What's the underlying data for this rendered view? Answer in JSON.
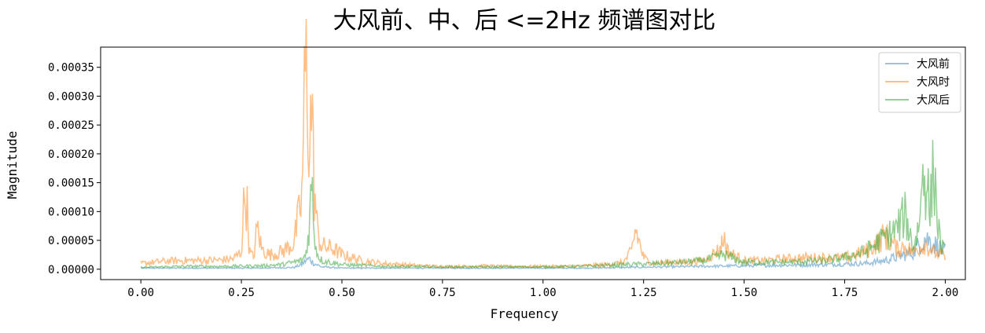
{
  "chart_data": {
    "type": "line",
    "title": "大风前、中、后 <=2Hz 频谱图对比",
    "xlabel": "Frequency",
    "ylabel": "Magnitude",
    "xlim": [
      -0.1,
      2.05
    ],
    "ylim": [
      -1.8e-05,
      0.000385
    ],
    "x_ticks": [
      0.0,
      0.25,
      0.5,
      0.75,
      1.0,
      1.25,
      1.5,
      1.75,
      2.0
    ],
    "x_tick_labels": [
      "0.00",
      "0.25",
      "0.50",
      "0.75",
      "1.00",
      "1.25",
      "1.50",
      "1.75",
      "2.00"
    ],
    "y_ticks": [
      0.0,
      5e-05,
      0.0001,
      0.00015,
      0.0002,
      0.00025,
      0.0003,
      0.00035
    ],
    "y_tick_labels": [
      "0.00000",
      "0.00005",
      "0.00010",
      "0.00015",
      "0.00020",
      "0.00025",
      "0.00030",
      "0.00035"
    ],
    "grid": false,
    "legend_position": "top-right",
    "series": [
      {
        "name": "大风前",
        "color": "#1f77b4",
        "opacity": 0.45,
        "x": [
          0.0,
          0.1,
          0.2,
          0.3,
          0.38,
          0.4,
          0.41,
          0.42,
          0.43,
          0.45,
          0.5,
          0.6,
          0.75,
          0.9,
          1.0,
          1.1,
          1.2,
          1.3,
          1.4,
          1.5,
          1.6,
          1.7,
          1.8,
          1.85,
          1.9,
          1.92,
          1.95,
          1.98,
          2.0
        ],
        "values": [
          2e-06,
          2e-06,
          2e-06,
          2e-06,
          3e-06,
          8e-06,
          1.5e-05,
          1.8e-05,
          1e-05,
          4e-06,
          2e-06,
          2e-06,
          2e-06,
          2e-06,
          2e-06,
          2e-06,
          3e-06,
          4e-06,
          5e-06,
          6e-06,
          7e-06,
          8e-06,
          1e-05,
          1.5e-05,
          2.5e-05,
          3e-05,
          5.5e-05,
          4e-05,
          3e-05
        ]
      },
      {
        "name": "大风时",
        "color": "#ff7f0e",
        "opacity": 0.5,
        "x": [
          0.0,
          0.03,
          0.06,
          0.1,
          0.15,
          0.2,
          0.23,
          0.25,
          0.255,
          0.26,
          0.265,
          0.27,
          0.28,
          0.29,
          0.3,
          0.32,
          0.35,
          0.38,
          0.4,
          0.405,
          0.41,
          0.415,
          0.42,
          0.425,
          0.43,
          0.44,
          0.45,
          0.48,
          0.5,
          0.55,
          0.6,
          0.65,
          0.7,
          0.75,
          0.8,
          0.85,
          0.9,
          0.95,
          1.0,
          1.05,
          1.1,
          1.15,
          1.18,
          1.2,
          1.22,
          1.23,
          1.24,
          1.25,
          1.27,
          1.3,
          1.35,
          1.4,
          1.44,
          1.45,
          1.46,
          1.5,
          1.55,
          1.6,
          1.65,
          1.7,
          1.75,
          1.8,
          1.83,
          1.85,
          1.88,
          1.9,
          1.92,
          1.95,
          1.97,
          1.99,
          2.0
        ],
        "values": [
          1e-05,
          1.2e-05,
          1.4e-05,
          1.5e-05,
          1.5e-05,
          1.6e-05,
          1.8e-05,
          3e-05,
          0.0001,
          0.000135,
          0.0001,
          3e-05,
          2e-05,
          7.5e-05,
          3.5e-05,
          2.5e-05,
          3e-05,
          4.5e-05,
          0.00012,
          0.00025,
          0.000365,
          0.00028,
          0.00021,
          0.000305,
          0.00015,
          6e-05,
          4e-05,
          3.5e-05,
          2.5e-05,
          1.5e-05,
          1e-05,
          8e-06,
          6e-06,
          5e-06,
          5e-06,
          6e-06,
          5e-06,
          5e-06,
          5e-06,
          5e-06,
          6e-06,
          8e-06,
          1e-05,
          1.2e-05,
          3e-05,
          7e-05,
          4.5e-05,
          2e-05,
          1e-05,
          1.2e-05,
          1.2e-05,
          1.5e-05,
          3.5e-05,
          5.5e-05,
          3e-05,
          1.5e-05,
          1.5e-05,
          1.8e-05,
          2e-05,
          2e-05,
          2e-05,
          3e-05,
          4.5e-05,
          6e-05,
          3.5e-05,
          4e-05,
          3e-05,
          4.5e-05,
          3e-05,
          2.5e-05,
          2e-05
        ]
      },
      {
        "name": "大风后",
        "color": "#2ca02c",
        "opacity": 0.5,
        "x": [
          0.0,
          0.05,
          0.1,
          0.2,
          0.3,
          0.35,
          0.4,
          0.41,
          0.415,
          0.42,
          0.425,
          0.43,
          0.435,
          0.44,
          0.45,
          0.5,
          0.6,
          0.75,
          0.9,
          1.0,
          1.1,
          1.2,
          1.3,
          1.4,
          1.45,
          1.5,
          1.6,
          1.7,
          1.75,
          1.8,
          1.85,
          1.88,
          1.9,
          1.92,
          1.93,
          1.94,
          1.945,
          1.95,
          1.955,
          1.96,
          1.965,
          1.97,
          1.975,
          1.98,
          1.985,
          1.99,
          2.0
        ],
        "values": [
          3e-06,
          4e-06,
          5e-06,
          5e-06,
          6e-06,
          8e-06,
          1.5e-05,
          2.5e-05,
          5e-05,
          9e-05,
          0.000155,
          8e-05,
          4e-05,
          2.5e-05,
          1.5e-05,
          8e-06,
          5e-06,
          4e-06,
          4e-06,
          4e-06,
          5e-06,
          8e-06,
          1e-05,
          1.5e-05,
          2.5e-05,
          1.2e-05,
          1.2e-05,
          1.5e-05,
          2e-05,
          3e-05,
          5.5e-05,
          7e-05,
          9.5e-05,
          4e-05,
          6e-05,
          0.00011,
          0.000195,
          0.00014,
          0.00018,
          9e-05,
          0.00012,
          0.000175,
          0.00015,
          9e-05,
          6e-05,
          4e-05,
          3e-05
        ]
      }
    ]
  }
}
